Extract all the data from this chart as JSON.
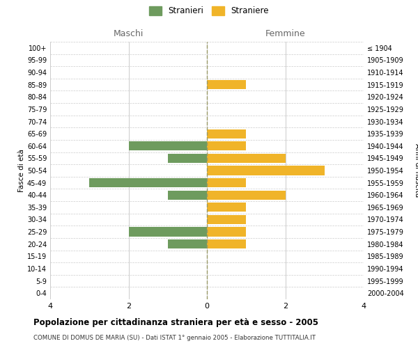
{
  "age_groups": [
    "100+",
    "95-99",
    "90-94",
    "85-89",
    "80-84",
    "75-79",
    "70-74",
    "65-69",
    "60-64",
    "55-59",
    "50-54",
    "45-49",
    "40-44",
    "35-39",
    "30-34",
    "25-29",
    "20-24",
    "15-19",
    "10-14",
    "5-9",
    "0-4"
  ],
  "birth_years": [
    "≤ 1904",
    "1905-1909",
    "1910-1914",
    "1915-1919",
    "1920-1924",
    "1925-1929",
    "1930-1934",
    "1935-1939",
    "1940-1944",
    "1945-1949",
    "1950-1954",
    "1955-1959",
    "1960-1964",
    "1965-1969",
    "1970-1974",
    "1975-1979",
    "1980-1984",
    "1985-1989",
    "1990-1994",
    "1995-1999",
    "2000-2004"
  ],
  "males": [
    0,
    0,
    0,
    0,
    0,
    0,
    0,
    0,
    2,
    1,
    0,
    3,
    1,
    0,
    0,
    2,
    1,
    0,
    0,
    0,
    0
  ],
  "females": [
    0,
    0,
    0,
    1,
    0,
    0,
    0,
    1,
    1,
    2,
    3,
    1,
    2,
    1,
    1,
    1,
    1,
    0,
    0,
    0,
    0
  ],
  "male_color": "#6e9b5e",
  "female_color": "#f0b429",
  "title": "Popolazione per cittadinanza straniera per età e sesso - 2005",
  "subtitle": "COMUNE DI DOMUS DE MARIA (SU) - Dati ISTAT 1° gennaio 2005 - Elaborazione TUTTITALIA.IT",
  "xlabel_left": "Maschi",
  "xlabel_right": "Femmine",
  "ylabel_left": "Fasce di età",
  "ylabel_right": "Anni di nascita",
  "legend_male": "Stranieri",
  "legend_female": "Straniere",
  "xlim": 4,
  "background_color": "#ffffff",
  "grid_color": "#cccccc",
  "bar_height": 0.75
}
